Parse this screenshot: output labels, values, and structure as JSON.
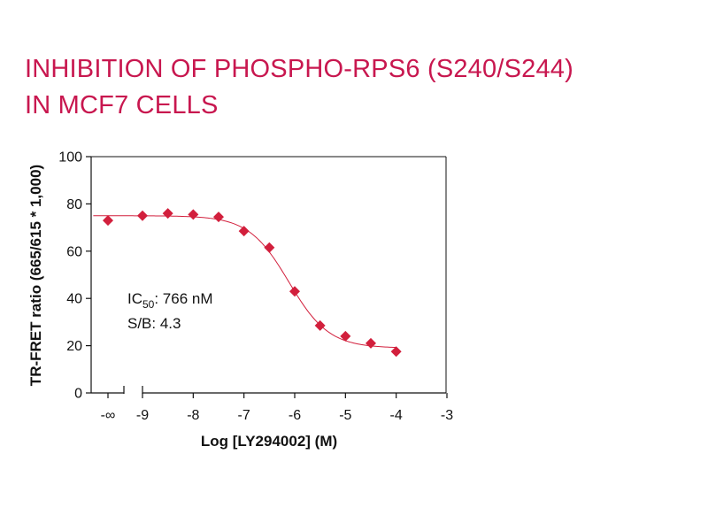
{
  "colors": {
    "accent": "#c8174f",
    "axis": "#111111",
    "marker": "#d21f3c",
    "curve": "#d21f3c"
  },
  "chart_data": {
    "type": "scatter",
    "title_lines": [
      "INHIBITION OF PHOSPHO-RPS6 (S240/S244)",
      "IN MCF7 CELLS"
    ],
    "xlabel": "Log [LY294002] (M)",
    "ylabel": "TR-FRET ratio (665/615 * 1,000)",
    "xlim": [
      -10,
      -3
    ],
    "ylim": [
      0,
      100
    ],
    "x_ticks": [
      {
        "value": -10,
        "label": "-∞"
      },
      {
        "value": -9,
        "label": "-9"
      },
      {
        "value": -8,
        "label": "-8"
      },
      {
        "value": -7,
        "label": "-7"
      },
      {
        "value": -6,
        "label": "-6"
      },
      {
        "value": -5,
        "label": "-5"
      },
      {
        "value": -4,
        "label": "-4"
      },
      {
        "value": -3,
        "label": "-3"
      }
    ],
    "y_ticks": [
      {
        "value": 0,
        "label": "0"
      },
      {
        "value": 20,
        "label": "20"
      },
      {
        "value": 40,
        "label": "40"
      },
      {
        "value": 60,
        "label": "60"
      },
      {
        "value": 80,
        "label": "80"
      },
      {
        "value": 100,
        "label": "100"
      }
    ],
    "axis_break": true,
    "grid": false,
    "points": [
      {
        "x": -10,
        "y": 73
      },
      {
        "x": -9,
        "y": 75
      },
      {
        "x": -8.5,
        "y": 76
      },
      {
        "x": -8,
        "y": 75.5
      },
      {
        "x": -7.5,
        "y": 74.5
      },
      {
        "x": -7,
        "y": 68.5
      },
      {
        "x": -6.5,
        "y": 61.5
      },
      {
        "x": -6,
        "y": 43
      },
      {
        "x": -5.5,
        "y": 28.5
      },
      {
        "x": -5,
        "y": 24
      },
      {
        "x": -4.5,
        "y": 21
      },
      {
        "x": -4,
        "y": 17.5
      }
    ],
    "fit": {
      "model": "4PL",
      "top": 75,
      "bottom": 19,
      "logIC50": -6.116,
      "hill": 1.1,
      "x_start": -10,
      "x_end": -4
    },
    "annotations": {
      "ic50_prefix": "IC",
      "ic50_sub": "50",
      "ic50_value": ": 766 nM",
      "sb": "S/B: 4.3"
    }
  }
}
